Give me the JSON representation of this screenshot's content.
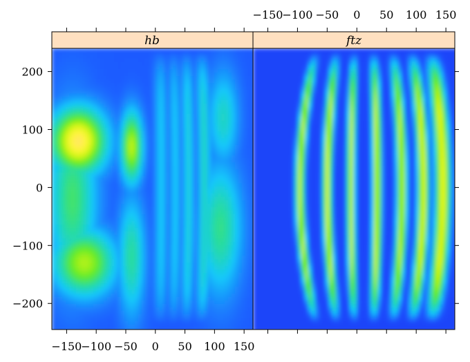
{
  "chart_data": {
    "type": "heatmap",
    "x_ticks": [
      -150,
      -100,
      -50,
      0,
      50,
      100,
      150
    ],
    "y_ticks": [
      200,
      100,
      0,
      -100,
      -200
    ],
    "xlim": [
      -175,
      165
    ],
    "ylim": [
      -245,
      240
    ],
    "panels": [
      {
        "strip_label": "hb",
        "background_level": 0.22,
        "blobs": [
          {
            "cx": -130,
            "cy": 80,
            "rx": 45,
            "ry": 55,
            "value": 0.88
          },
          {
            "cx": -120,
            "cy": -130,
            "rx": 50,
            "ry": 55,
            "value": 0.7
          },
          {
            "cx": -140,
            "cy": -20,
            "rx": 40,
            "ry": 140,
            "value": 0.55
          },
          {
            "cx": -40,
            "cy": 70,
            "rx": 18,
            "ry": 60,
            "value": 0.72
          },
          {
            "cx": -40,
            "cy": -120,
            "rx": 22,
            "ry": 100,
            "value": 0.5
          },
          {
            "cx": 110,
            "cy": -70,
            "rx": 35,
            "ry": 110,
            "value": 0.52
          },
          {
            "cx": 115,
            "cy": 120,
            "rx": 25,
            "ry": 80,
            "value": 0.45
          }
        ],
        "stripes": [
          {
            "x": 8,
            "amp": 2,
            "width": 11,
            "value": 0.38
          },
          {
            "x": 30,
            "amp": 4,
            "width": 10,
            "value": 0.38
          },
          {
            "x": 52,
            "amp": 4,
            "width": 10,
            "value": 0.42
          },
          {
            "x": 78,
            "amp": 5,
            "width": 11,
            "value": 0.45
          }
        ]
      },
      {
        "strip_label": "ftz",
        "background_level": 0.15,
        "blobs": [],
        "stripes": [
          {
            "x": -68,
            "amp": -28,
            "width": 8,
            "value": 0.72
          },
          {
            "x": -34,
            "amp": -16,
            "width": 8,
            "value": 0.74
          },
          {
            "x": -4,
            "amp": -6,
            "width": 7,
            "value": 0.72
          },
          {
            "x": 28,
            "amp": 6,
            "width": 8,
            "value": 0.74
          },
          {
            "x": 60,
            "amp": 16,
            "width": 9,
            "value": 0.72
          },
          {
            "x": 92,
            "amp": 20,
            "width": 10,
            "value": 0.76
          },
          {
            "x": 125,
            "amp": 20,
            "width": 13,
            "value": 0.78
          }
        ]
      }
    ],
    "colormap": "jet-like (blue-cyan-green-yellow-peach)",
    "strip_color": "#ffe0c0"
  }
}
